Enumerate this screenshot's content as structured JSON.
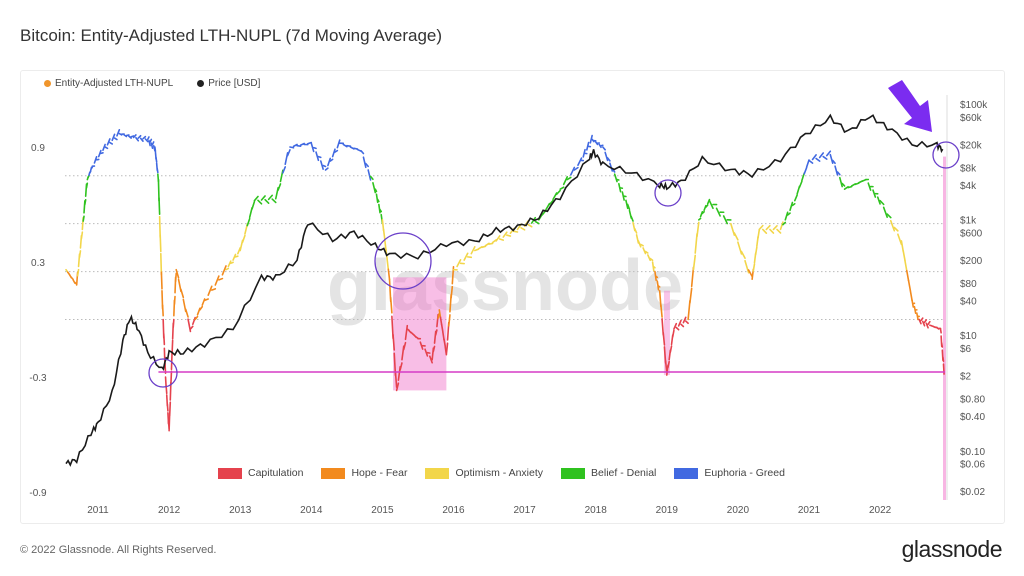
{
  "title": "Bitcoin: Entity-Adjusted LTH-NUPL (7d Moving Average)",
  "footer": "© 2022 Glassnode. All Rights Reserved.",
  "logo": "glassnode",
  "watermark": "glassnode",
  "chart_data": {
    "type": "line",
    "title": "Bitcoin: Entity-Adjusted LTH-NUPL (7d Moving Average)",
    "legend_top": [
      {
        "name": "Entity-Adjusted LTH-NUPL",
        "color": "#f0952b"
      },
      {
        "name": "Price [USD]",
        "color": "#222222"
      }
    ],
    "zones": [
      {
        "name": "Capitulation",
        "color": "#e5424d",
        "min": -1,
        "max": 0
      },
      {
        "name": "Hope - Fear",
        "color": "#f28a1e",
        "min": 0,
        "max": 0.25
      },
      {
        "name": "Optimism - Anxiety",
        "color": "#f2d64a",
        "min": 0.25,
        "max": 0.5
      },
      {
        "name": "Belief - Denial",
        "color": "#2fc21f",
        "min": 0.5,
        "max": 0.75
      },
      {
        "name": "Euphoria - Greed",
        "color": "#4169e1",
        "min": 0.75,
        "max": 1.2
      }
    ],
    "x_ticks": [
      "2011",
      "2012",
      "2013",
      "2014",
      "2015",
      "2016",
      "2017",
      "2018",
      "2019",
      "2020",
      "2021",
      "2022"
    ],
    "xlim": [
      2010.55,
      2022.92
    ],
    "y_left_ticks": [
      "0.9",
      "0.3",
      "-0.3",
      "-0.9"
    ],
    "y_left_values": [
      0.9,
      0.3,
      -0.3,
      -0.9
    ],
    "y_right_ticks": [
      "$100k",
      "$60k",
      "$20k",
      "$8k",
      "$4k",
      "$1k",
      "$600",
      "$200",
      "$80",
      "$40",
      "$10",
      "$6",
      "$2",
      "$0.80",
      "$0.40",
      "$0.10",
      "$0.06",
      "$0.02"
    ],
    "y_right_values": [
      100000,
      60000,
      20000,
      8000,
      4000,
      1000,
      600,
      200,
      80,
      40,
      10,
      6,
      2,
      0.8,
      0.4,
      0.1,
      0.06,
      0.02
    ],
    "y_right_scale": "log",
    "nupl": {
      "x": [
        2010.55,
        2010.7,
        2010.78,
        2010.85,
        2010.92,
        2011.1,
        2011.3,
        2011.5,
        2011.7,
        2011.8,
        2011.85,
        2011.9,
        2011.95,
        2012.0,
        2012.05,
        2012.1,
        2012.3,
        2012.5,
        2012.8,
        2013.0,
        2013.2,
        2013.5,
        2013.7,
        2014.0,
        2014.2,
        2014.4,
        2014.7,
        2014.9,
        2015.0,
        2015.1,
        2015.2,
        2015.35,
        2015.5,
        2015.7,
        2015.8,
        2015.9,
        2016.0,
        2016.3,
        2016.6,
        2016.9,
        2017.2,
        2017.5,
        2017.8,
        2017.95,
        2018.1,
        2018.3,
        2018.45,
        2018.6,
        2018.8,
        2018.9,
        2019.0,
        2019.1,
        2019.3,
        2019.45,
        2019.6,
        2019.9,
        2020.2,
        2020.3,
        2020.6,
        2020.8,
        2021.0,
        2021.3,
        2021.5,
        2021.8,
        2022.0,
        2022.3,
        2022.45,
        2022.55,
        2022.7,
        2022.85,
        2022.9
      ],
      "values": [
        0.26,
        0.18,
        0.47,
        0.73,
        0.8,
        0.9,
        0.97,
        0.95,
        0.94,
        0.9,
        0.73,
        0.15,
        -0.3,
        -0.58,
        -0.1,
        0.26,
        -0.05,
        0.1,
        0.26,
        0.36,
        0.62,
        0.63,
        0.9,
        0.92,
        0.78,
        0.92,
        0.88,
        0.68,
        0.52,
        0.21,
        -0.37,
        -0.05,
        -0.1,
        -0.21,
        0.05,
        -0.18,
        0.26,
        0.36,
        0.41,
        0.47,
        0.52,
        0.68,
        0.83,
        0.94,
        0.9,
        0.73,
        0.6,
        0.41,
        0.3,
        0.15,
        -0.29,
        -0.05,
        0.0,
        0.52,
        0.62,
        0.5,
        0.21,
        0.47,
        0.47,
        0.62,
        0.83,
        0.86,
        0.68,
        0.73,
        0.62,
        0.41,
        0.1,
        0.0,
        -0.03,
        -0.05,
        -0.27
      ]
    },
    "price": {
      "x": [
        2010.55,
        2010.7,
        2010.9,
        2011.0,
        2011.2,
        2011.35,
        2011.45,
        2011.55,
        2011.7,
        2011.9,
        2012.0,
        2012.2,
        2012.5,
        2012.9,
        2013.3,
        2013.5,
        2013.8,
        2013.95,
        2014.3,
        2014.6,
        2014.9,
        2015.1,
        2015.5,
        2015.9,
        2016.3,
        2016.6,
        2016.9,
        2017.2,
        2017.5,
        2017.9,
        2017.97,
        2018.1,
        2018.5,
        2018.9,
        2019.0,
        2019.2,
        2019.5,
        2019.9,
        2020.2,
        2020.6,
        2020.95,
        2021.3,
        2021.55,
        2021.85,
        2022.1,
        2022.45,
        2022.8,
        2022.88
      ],
      "values": [
        0.06,
        0.07,
        0.2,
        0.3,
        1,
        8,
        20,
        14,
        5,
        2.5,
        5,
        5,
        7,
        13,
        100,
        100,
        200,
        900,
        450,
        600,
        350,
        250,
        230,
        380,
        420,
        650,
        750,
        1100,
        2500,
        11000,
        15000,
        9000,
        6500,
        4000,
        3600,
        4500,
        11000,
        7200,
        6000,
        11000,
        30000,
        57000,
        33000,
        62000,
        40000,
        20000,
        19500,
        16500
      ]
    }
  }
}
